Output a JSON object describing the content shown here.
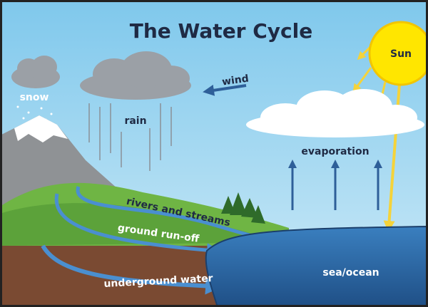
{
  "title": "The Water Cycle",
  "labels": {
    "sun": "Sun",
    "wind": "wind",
    "snow": "snow",
    "rain": "rain",
    "evaporation": "evaporation",
    "rivers": "rivers and streams",
    "runoff": "ground run-off",
    "underground": "underground water",
    "sea": "sea/ocean"
  }
}
